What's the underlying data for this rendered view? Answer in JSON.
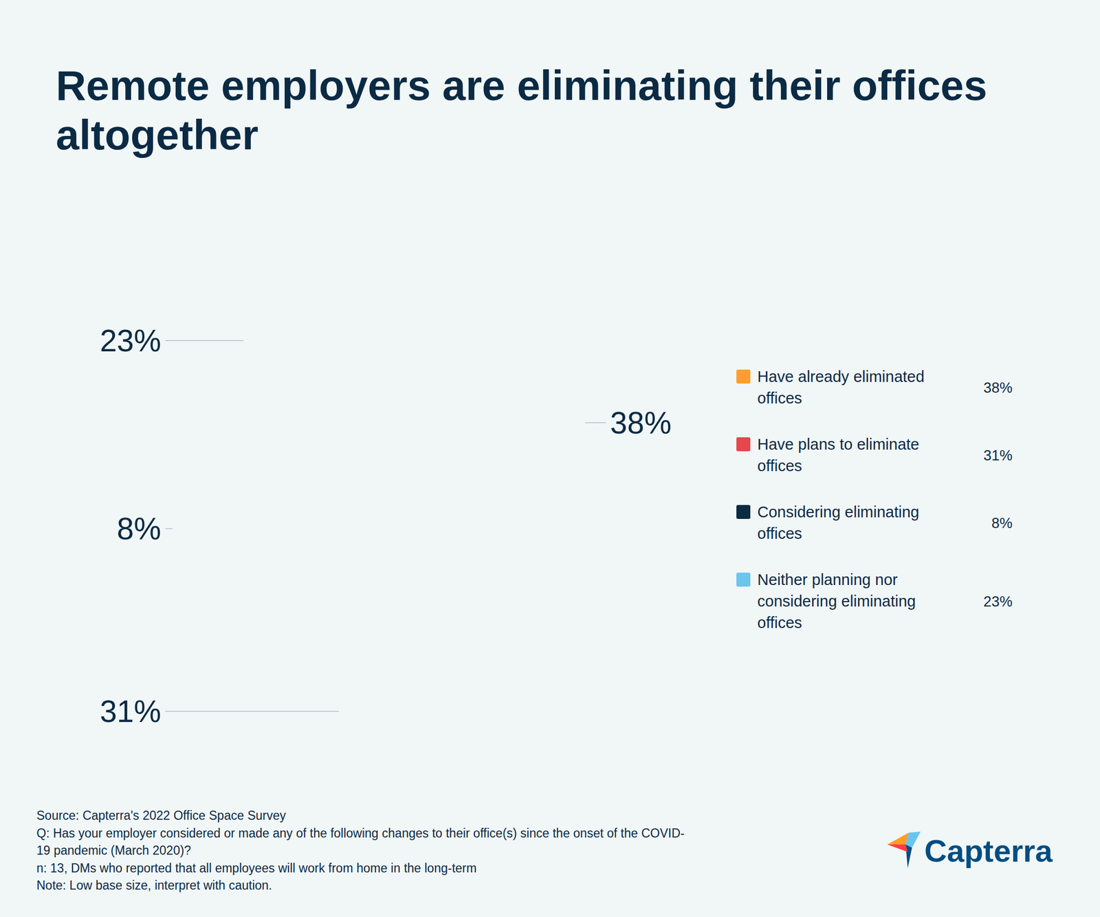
{
  "chart_data": {
    "type": "donut",
    "title": "Remote employers are eliminating their offices altogether",
    "categories": [
      "Have already eliminated offices",
      "Have plans to eliminate offices",
      "Considering eliminating offices",
      "Neither planning nor considering eliminating offices"
    ],
    "values": [
      38,
      31,
      8,
      23
    ],
    "value_labels": [
      "38%",
      "31%",
      "8%",
      "23%"
    ],
    "colors": [
      "#ff9e2c",
      "#e5484a",
      "#0a2b42",
      "#6bc5ed"
    ],
    "data_labels": true,
    "legend": "right",
    "annotations": [
      "Source: Capterra's 2022 Office Space Survey",
      "Q: Has your employer considered or made any of the following changes to their office(s) since the onset of the COVID-",
      "19 pandemic (March 2020)?",
      "n: 13, DMs who reported that all employees will work from home in the long-term",
      "Note: Low base size, interpret with caution."
    ],
    "brand": "Capterra"
  }
}
